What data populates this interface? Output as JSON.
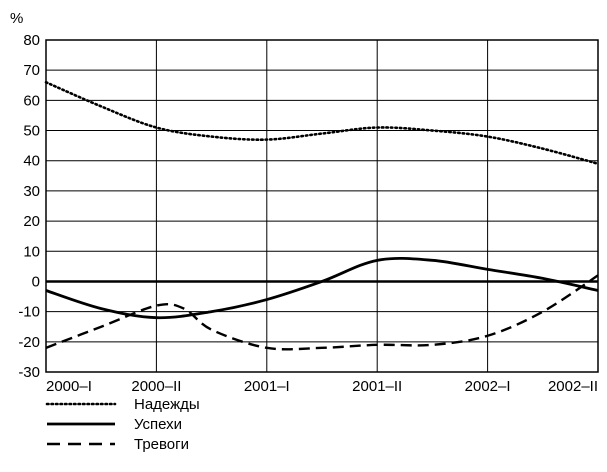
{
  "chart_data": {
    "type": "line",
    "title": "",
    "xlabel": "",
    "ylabel": "%",
    "ylim": [
      -30,
      80
    ],
    "yticks": [
      80,
      70,
      60,
      50,
      40,
      30,
      20,
      10,
      0,
      -10,
      -20,
      -30
    ],
    "categories": [
      "2000–I",
      "2000–II",
      "2001–I",
      "2001–II",
      "2002–I",
      "2002–II"
    ],
    "grid": true,
    "legend_position": "bottom-left",
    "series": [
      {
        "name": "Надежды",
        "style": "dotted",
        "x": [
          0,
          0.5,
          1,
          1.5,
          2,
          2.5,
          3,
          3.5,
          4,
          4.5,
          5
        ],
        "values": [
          66,
          58,
          51,
          48,
          47,
          49,
          51,
          50,
          48,
          44,
          39
        ]
      },
      {
        "name": "Успехи",
        "style": "solid",
        "x": [
          0,
          0.5,
          1,
          1.5,
          2,
          2.5,
          3,
          3.5,
          4,
          4.5,
          5
        ],
        "values": [
          -3,
          -9,
          -12,
          -10,
          -6,
          0,
          7,
          7,
          4,
          1,
          -3
        ]
      },
      {
        "name": "Тревоги",
        "style": "dashed",
        "x": [
          0,
          0.5,
          1,
          1.25,
          1.5,
          2,
          2.5,
          3,
          3.5,
          4,
          4.5,
          5
        ],
        "values": [
          -22,
          -15,
          -8,
          -9,
          -16,
          -22,
          -22,
          -21,
          -21,
          -18,
          -10,
          2
        ]
      }
    ],
    "zero_line": 0
  },
  "colors": {
    "line": "#000000",
    "grid": "#000000",
    "background": "#ffffff"
  }
}
